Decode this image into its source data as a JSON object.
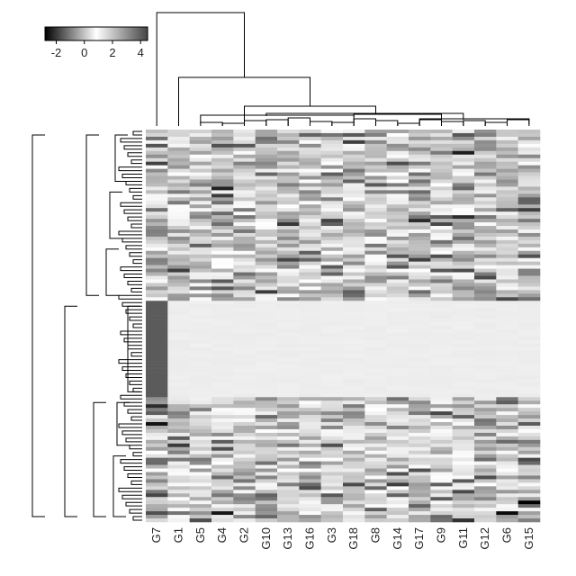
{
  "chart_data": {
    "type": "heatmap",
    "title": "",
    "xlabel": "",
    "ylabel": "",
    "columns": [
      "G7",
      "G1",
      "G5",
      "G4",
      "G2",
      "G10",
      "G13",
      "G16",
      "G3",
      "G18",
      "G8",
      "G14",
      "G17",
      "G9",
      "G11",
      "G12",
      "G6",
      "G15"
    ],
    "row_count": 110,
    "row_blocks": [
      {
        "name": "upper",
        "rows": 48,
        "pattern": "varied"
      },
      {
        "name": "middle",
        "rows": 27,
        "pattern": "uniform",
        "first_column_value": -1.5,
        "other_columns_value": 0.6
      },
      {
        "name": "lower",
        "rows": 35,
        "pattern": "varied"
      }
    ],
    "value_range": [
      -2.8,
      4.5
    ],
    "color_scale": {
      "low": "#000000",
      "mid": "#ffffff",
      "high": "#454545"
    },
    "color_key": {
      "ticks": [
        -2,
        0,
        2,
        4
      ],
      "range": [
        -2.8,
        4.5
      ]
    },
    "dendrogram_columns": true,
    "dendrogram_rows": true
  }
}
